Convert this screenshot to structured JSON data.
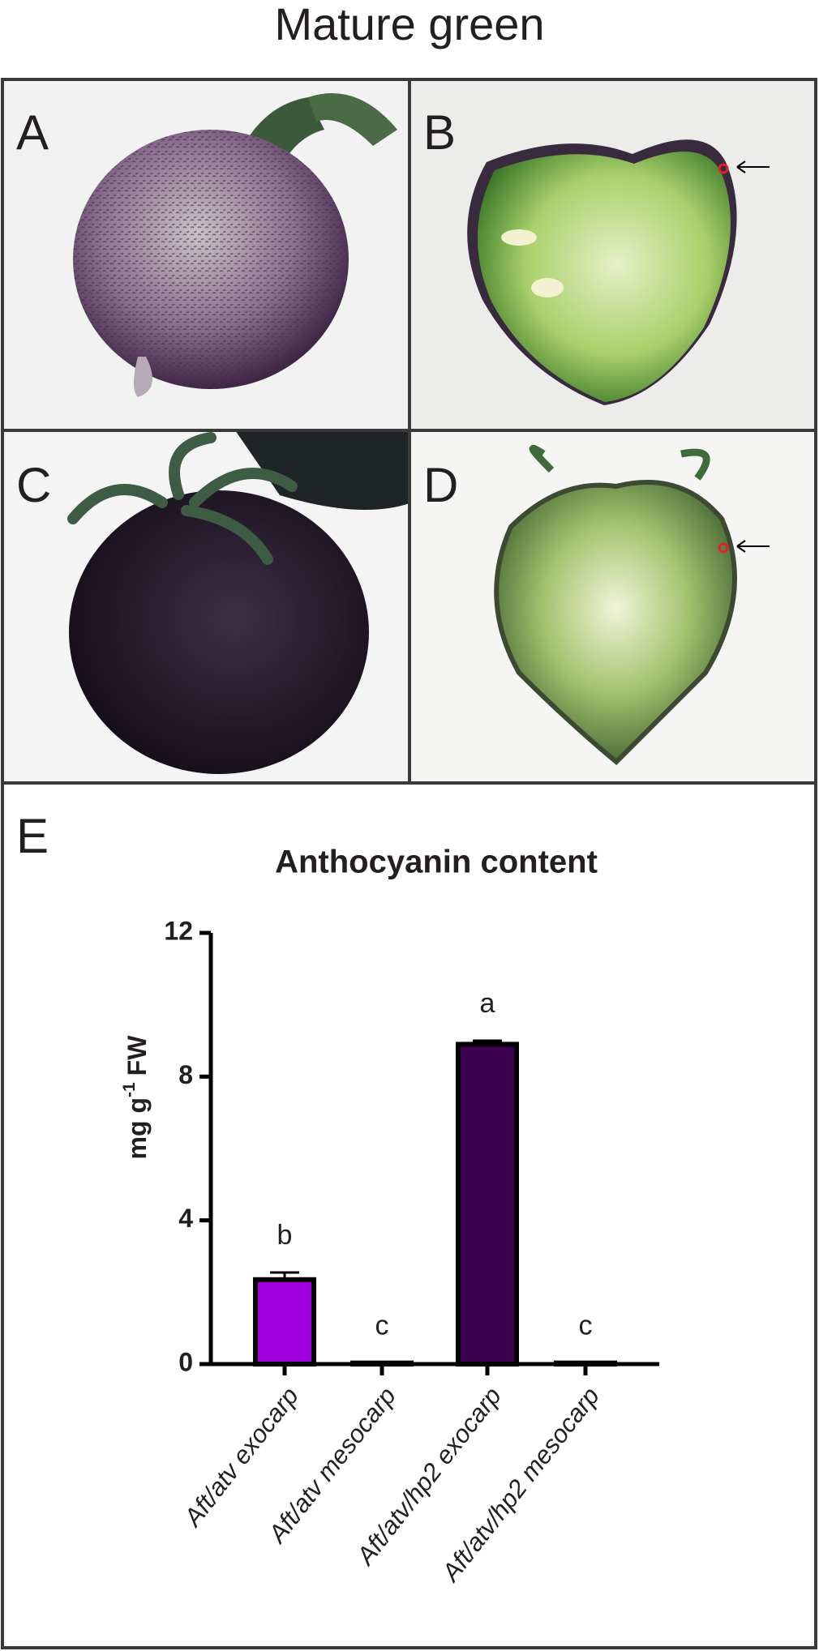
{
  "title": "Mature green",
  "panels": [
    "A",
    "B",
    "C",
    "D",
    "E"
  ],
  "chart_data": {
    "type": "bar",
    "title": "Anthocyanin content",
    "ylabel": {
      "text": "mg g",
      "superscript": "-1",
      "unit": "FW"
    },
    "categories": [
      "Aft/atv exocarp",
      "Aft/atv mesocarp",
      "Aft/atv/hp2 exocarp",
      "Aft/atv/hp2 mesocarp"
    ],
    "values": [
      2.35,
      0.03,
      8.9,
      0.03
    ],
    "errors": [
      0.2,
      0,
      0.1,
      0
    ],
    "colors": [
      "#a100e0",
      "#ffffff",
      "#3b0050",
      "#ffffff"
    ],
    "annotations": [
      "b",
      "c",
      "a",
      "c"
    ],
    "ylim": [
      0,
      12
    ],
    "yticks": [
      0,
      4,
      8,
      12
    ],
    "grid": false
  }
}
